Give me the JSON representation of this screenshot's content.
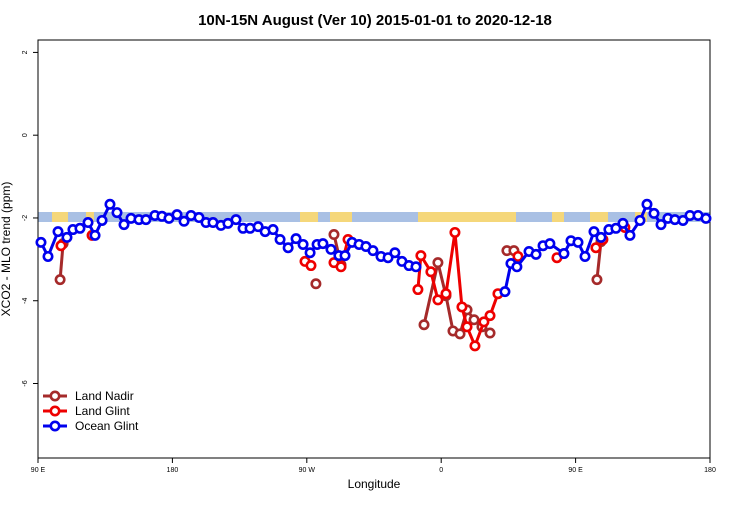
{
  "chart_data": {
    "type": "line",
    "title": "10N-15N August (Ver 10)   2015-01-01 to 2020-12-18",
    "x_label": "Longitude",
    "y_label": "XCO2 - MLO trend (ppm)",
    "xlim": [
      90,
      540
    ],
    "xticks": [
      {
        "value": 90,
        "label": "90 E"
      },
      {
        "value": 180,
        "label": "180"
      },
      {
        "value": 270,
        "label": "90 W"
      },
      {
        "value": 360,
        "label": "0"
      },
      {
        "value": 450,
        "label": "90 E"
      },
      {
        "value": 540,
        "label": "180"
      }
    ],
    "ylim": [
      -7.8,
      2.3
    ],
    "yticks": [
      -6,
      -4,
      -2,
      0,
      2
    ],
    "legend": "bottom-left",
    "series": [
      {
        "name": "Land Nadir",
        "color": "#a52a2a",
        "x": [
          104.8,
          106.8,
          null,
          276.1,
          null,
          288.2,
          292.9,
          null,
          348.5,
          357.8,
          363.2,
          367.9,
          372.6,
          377.3,
          382.0,
          387.3,
          392.7,
          null,
          404.0,
          408.7,
          null,
          464.3,
          467.0
        ],
        "values": [
          -3.49,
          -2.62,
          null,
          -3.59,
          null,
          -2.4,
          -3.13,
          null,
          -4.58,
          -3.08,
          -3.88,
          -4.73,
          -4.8,
          -4.22,
          -4.46,
          -4.63,
          -4.78,
          null,
          -2.79,
          -2.79,
          null,
          -3.49,
          -2.57
        ]
      },
      {
        "name": "Land Glint",
        "color": "#ee0000",
        "x": [
          105.4,
          null,
          126.2,
          null,
          268.8,
          272.8,
          null,
          288.2,
          292.9,
          297.6,
          null,
          344.4,
          346.4,
          353.1,
          357.8,
          363.2,
          369.2,
          373.9,
          377.3,
          382.6,
          388.6,
          392.7,
          398.0,
          null,
          411.4,
          null,
          437.5,
          null,
          463.6,
          468.3,
          null,
          483.0
        ],
        "values": [
          -2.67,
          null,
          -2.42,
          null,
          -3.05,
          -3.15,
          null,
          -3.08,
          -3.18,
          -2.52,
          null,
          -3.73,
          -2.91,
          -3.3,
          -3.98,
          -3.83,
          -2.35,
          -4.15,
          -4.63,
          -5.09,
          -4.51,
          -4.36,
          -3.83,
          null,
          -2.93,
          null,
          -2.96,
          null,
          -2.72,
          -2.52,
          null,
          -2.23
        ]
      },
      {
        "name": "Ocean Glint",
        "color": "#0000ee",
        "x": [
          92.0,
          96.7,
          103.4,
          109.4,
          113.4,
          118.1,
          123.5,
          128.2,
          132.9,
          138.2,
          142.9,
          147.6,
          152.3,
          157.6,
          162.3,
          168.3,
          173.0,
          177.7,
          183.1,
          187.8,
          192.5,
          197.8,
          202.5,
          207.2,
          212.5,
          217.2,
          222.6,
          227.3,
          232.0,
          237.4,
          242.1,
          247.4,
          252.1,
          257.5,
          262.8,
          267.5,
          272.2,
          276.9,
          280.8,
          286.2,
          291.5,
          295.6,
          300.3,
          305.0,
          309.6,
          314.3,
          319.7,
          324.4,
          329.0,
          333.7,
          338.4,
          343.1,
          null,
          402.7,
          406.7,
          410.7,
          418.8,
          423.5,
          428.2,
          432.8,
          442.2,
          446.9,
          451.6,
          456.3,
          462.3,
          467.0,
          472.3,
          477.0,
          481.7,
          486.4,
          493.1,
          497.8,
          502.5,
          507.2,
          511.8,
          516.5,
          521.9,
          526.6,
          532.0,
          537.3
        ],
        "values": [
          -2.59,
          -2.93,
          -2.33,
          -2.47,
          -2.28,
          -2.25,
          -2.11,
          -2.42,
          -2.06,
          -1.67,
          -1.87,
          -2.16,
          -2.01,
          -2.04,
          -2.04,
          -1.94,
          -1.96,
          -2.01,
          -1.92,
          -2.08,
          -1.94,
          -1.99,
          -2.11,
          -2.11,
          -2.18,
          -2.13,
          -2.04,
          -2.25,
          -2.25,
          -2.21,
          -2.33,
          -2.28,
          -2.52,
          -2.72,
          -2.5,
          -2.64,
          -2.84,
          -2.64,
          -2.62,
          -2.76,
          -2.91,
          -2.91,
          -2.59,
          -2.64,
          -2.69,
          -2.79,
          -2.93,
          -2.96,
          -2.84,
          -3.05,
          -3.15,
          -3.18,
          null,
          -3.78,
          -3.1,
          -3.18,
          -2.81,
          -2.88,
          -2.67,
          -2.62,
          -2.86,
          -2.55,
          -2.59,
          -2.93,
          -2.33,
          -2.47,
          -2.28,
          -2.25,
          -2.13,
          -2.42,
          -2.06,
          -1.67,
          -1.89,
          -2.16,
          -2.01,
          -2.04,
          -2.06,
          -1.94,
          -1.94,
          -2.01
        ]
      }
    ]
  }
}
